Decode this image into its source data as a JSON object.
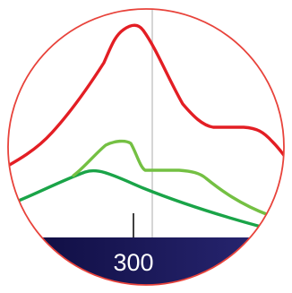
{
  "readout": {
    "value": "300"
  },
  "colors": {
    "ring": "#e8433b",
    "line_primary": "#e31e24",
    "line_secondary": "#74c043",
    "line_tertiary": "#1aa448",
    "cursor": "#cccccc",
    "bar_start": "#0d0b3d",
    "bar_end": "#2a2876"
  },
  "icons": {
    "magnifier": "zoom-lens-icon"
  }
}
